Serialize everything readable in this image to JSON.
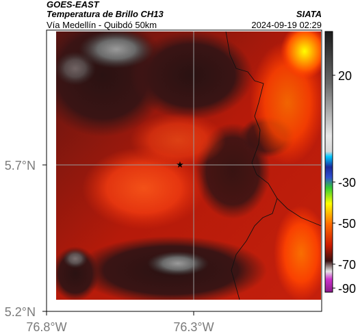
{
  "header": {
    "satellite": "GOES-EAST",
    "product": "Temperatura de Brillo CH13",
    "region": "Vía Medellín - Quibdó 50km",
    "brand": "SIATA",
    "timestamp": "2024-09-19 02:29"
  },
  "map": {
    "y_ticks": [
      "5.7°N",
      "5.2°N"
    ],
    "x_ticks": [
      "76.8°W",
      "76.3°W"
    ],
    "gridlines": [
      "5.7°N",
      "76.3°W"
    ],
    "marker": {
      "symbol": "★",
      "lat": 5.7,
      "lon": -76.33
    }
  },
  "colorbar": {
    "ticks": [
      "20",
      "-30",
      "-50",
      "-70",
      "-90"
    ],
    "colors": {
      "warm_bottom": "#3a1111",
      "red": "#cc1a00",
      "orange": "#ff6a00",
      "yellow": "#ffff00",
      "green": "#33cc33",
      "blue": "#1a2a9c",
      "cyan": "#00c8ff",
      "gray_light": "#e8e8e8",
      "black": "#1a1a1a",
      "magenta": "#cc33cc"
    }
  }
}
